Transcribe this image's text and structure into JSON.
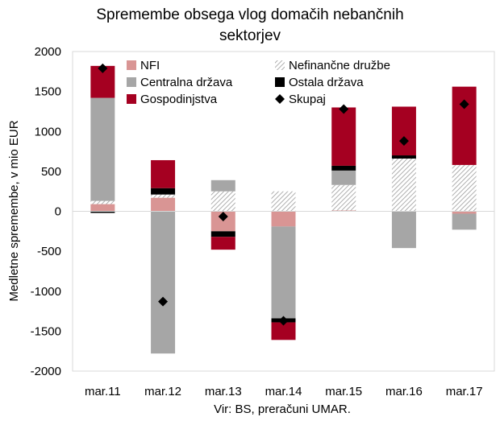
{
  "chart_data": {
    "type": "bar",
    "stacked": true,
    "title": [
      "Spremembe obsega vlog domačih nebančnih",
      "sektorjev"
    ],
    "ylabel": "Medletne spremembe, v mio EUR",
    "xlabel": "",
    "source": "Vir: BS, preračuni UMAR.",
    "ylim": [
      -2000,
      2000
    ],
    "yticks": [
      2000,
      1500,
      1000,
      500,
      0,
      -500,
      -1000,
      -1500,
      -2000
    ],
    "grid": false,
    "legend_position": "top",
    "categories": [
      "mar.11",
      "mar.12",
      "mar.13",
      "mar.14",
      "mar.15",
      "mar.16",
      "mar.17"
    ],
    "series": [
      {
        "name": "NFI",
        "color": "#d99594",
        "pattern": "solid",
        "values": [
          90,
          170,
          -250,
          -190,
          10,
          0,
          -30
        ]
      },
      {
        "name": "Nefinančne družbe",
        "color": "#a6a6a6",
        "pattern": "hatch",
        "values": [
          40,
          40,
          250,
          250,
          320,
          660,
          580
        ]
      },
      {
        "name": "Centralna država",
        "color": "#a6a6a6",
        "pattern": "solid",
        "values": [
          1290,
          -1780,
          140,
          -1150,
          180,
          -460,
          -200
        ]
      },
      {
        "name": "Ostala država",
        "color": "#000000",
        "pattern": "solid",
        "values": [
          -20,
          80,
          -70,
          -50,
          60,
          40,
          0
        ]
      },
      {
        "name": "Gospodinjstva",
        "color": "#a50021",
        "pattern": "solid",
        "values": [
          400,
          350,
          -160,
          -220,
          730,
          610,
          980
        ]
      }
    ],
    "total": {
      "name": "Skupaj",
      "color": "#000000",
      "marker": "diamond",
      "values": [
        1790,
        -1130,
        -65,
        -1370,
        1280,
        880,
        1340
      ]
    }
  }
}
